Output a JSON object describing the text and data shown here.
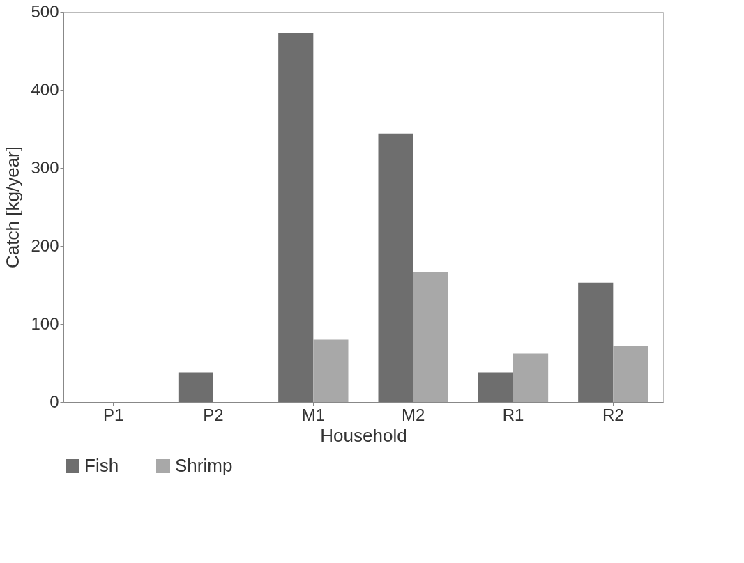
{
  "chart_data": {
    "type": "bar",
    "xlabel": "Household",
    "ylabel": "Catch [kg/year]",
    "categories": [
      "P1",
      "P2",
      "M1",
      "M2",
      "R1",
      "R2"
    ],
    "series": [
      {
        "name": "Fish",
        "color": "#6e6e6e",
        "values": [
          null,
          38,
          473,
          344,
          38,
          153
        ]
      },
      {
        "name": "Shrimp",
        "color": "#a8a8a8",
        "values": [
          null,
          null,
          80,
          167,
          62,
          72
        ]
      }
    ],
    "ylim": [
      0,
      500
    ],
    "yticks": [
      0,
      100,
      200,
      300,
      400,
      500
    ],
    "grid": false,
    "legend": "bottom"
  }
}
